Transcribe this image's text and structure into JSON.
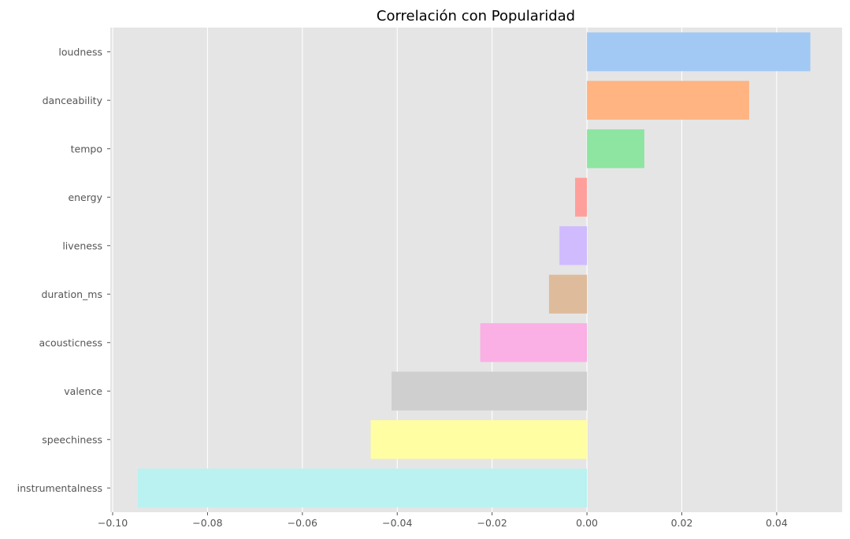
{
  "chart_data": {
    "type": "bar",
    "orientation": "horizontal",
    "title": "Correlación con Popularidad",
    "xlabel": "",
    "ylabel": "",
    "xlim": [
      -0.1005,
      0.0538
    ],
    "xticks": [
      -0.1,
      -0.08,
      -0.06,
      -0.04,
      -0.02,
      0.0,
      0.02,
      0.04
    ],
    "xtick_labels": [
      "−0.10",
      "−0.08",
      "−0.06",
      "−0.04",
      "−0.02",
      "0.00",
      "0.02",
      "0.04"
    ],
    "grid": true,
    "categories": [
      "loudness",
      "danceability",
      "tempo",
      "energy",
      "liveness",
      "duration_ms",
      "acousticness",
      "valence",
      "speechiness",
      "instrumentalness"
    ],
    "values": [
      0.0471,
      0.0342,
      0.0121,
      -0.0025,
      -0.0058,
      -0.008,
      -0.0225,
      -0.0412,
      -0.0456,
      -0.0947
    ],
    "colors": [
      "#a1c9f4",
      "#ffb482",
      "#8de5a1",
      "#ff9f9b",
      "#d0bbff",
      "#debb9b",
      "#fab0e4",
      "#cfcfcf",
      "#fffea3",
      "#b9f2f0"
    ],
    "background_color": "#e5e5e5"
  }
}
